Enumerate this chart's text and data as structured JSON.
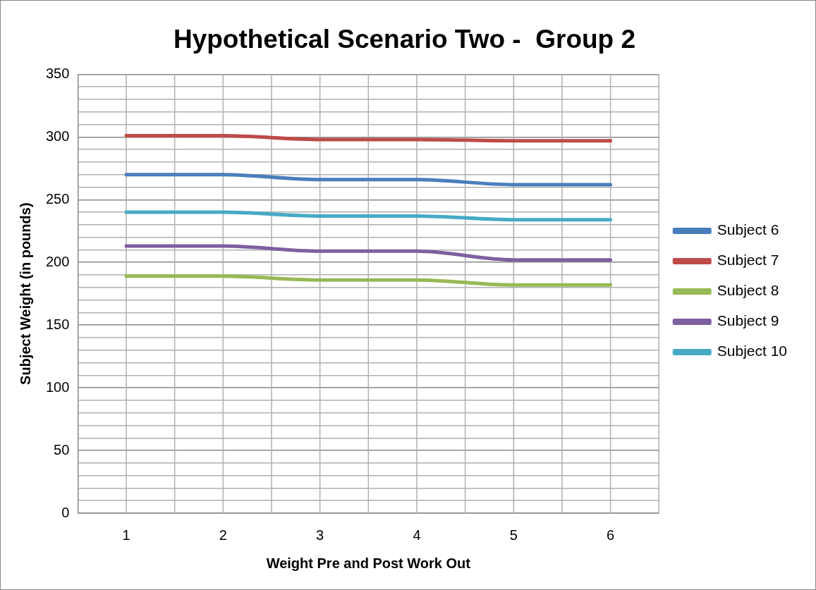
{
  "chart_data": {
    "type": "line",
    "title": "Hypothetical Scenario Two -  Group 2",
    "xlabel": "Weight Pre and Post Work Out",
    "ylabel": "Subject Weight (in pounds)",
    "categories": [
      "1",
      "2",
      "3",
      "4",
      "5",
      "6"
    ],
    "series": [
      {
        "name": "Subject 6",
        "color": "#4a7ebb",
        "values": [
          270,
          270,
          266,
          266,
          262,
          262
        ]
      },
      {
        "name": "Subject 7",
        "color": "#be4b48",
        "values": [
          301,
          301,
          298,
          298,
          297,
          297
        ]
      },
      {
        "name": "Subject 8",
        "color": "#98b954",
        "values": [
          189,
          189,
          186,
          186,
          182,
          182
        ]
      },
      {
        "name": "Subject 9",
        "color": "#7d60a0",
        "values": [
          213,
          213,
          209,
          209,
          202,
          202
        ]
      },
      {
        "name": "Subject 10",
        "color": "#46aac5",
        "values": [
          240,
          240,
          237,
          237,
          234,
          234
        ]
      }
    ],
    "ylim": [
      0,
      350
    ],
    "yticks": [
      0,
      {
        "value": 10,
        "label": null
      },
      {
        "value": 20,
        "label": null
      },
      {
        "value": 30,
        "label": null
      },
      {
        "value": 40,
        "label": null
      },
      50,
      {
        "value": 60,
        "label": null
      },
      {
        "value": 70,
        "label": null
      },
      {
        "value": 80,
        "label": null
      },
      {
        "value": 90,
        "label": null
      },
      100,
      {
        "value": 110,
        "label": null
      },
      {
        "value": 120,
        "label": null
      },
      {
        "value": 130,
        "label": null
      },
      {
        "value": 140,
        "label": null
      },
      150,
      {
        "value": 160,
        "label": null
      },
      {
        "value": 170,
        "label": null
      },
      {
        "value": 180,
        "label": null
      },
      {
        "value": 190,
        "label": null
      },
      200,
      {
        "value": 210,
        "label": null
      },
      {
        "value": 220,
        "label": null
      },
      {
        "value": 230,
        "label": null
      },
      {
        "value": 240,
        "label": null
      },
      250,
      {
        "value": 260,
        "label": null
      },
      {
        "value": 270,
        "label": null
      },
      {
        "value": 280,
        "label": null
      },
      {
        "value": 290,
        "label": null
      },
      300,
      {
        "value": 310,
        "label": null
      },
      {
        "value": 320,
        "label": null
      },
      {
        "value": 330,
        "label": null
      },
      {
        "value": 340,
        "label": null
      },
      350
    ],
    "grid": true,
    "legend": "right",
    "marker": "none",
    "line_style": "solid"
  }
}
